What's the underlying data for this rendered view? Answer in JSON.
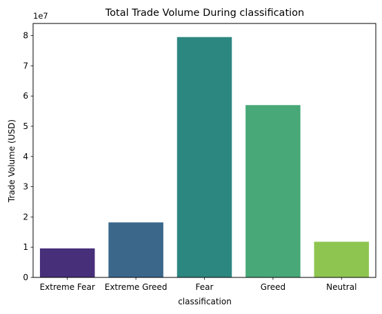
{
  "chart_data": {
    "type": "bar",
    "title": "Total Trade Volume During classification",
    "xlabel": "classification",
    "ylabel": "Trade Volume (USD)",
    "offset_text": "1e7",
    "categories": [
      "Extreme Fear",
      "Extreme Greed",
      "Fear",
      "Greed",
      "Neutral"
    ],
    "values": [
      9600000.0,
      18200000.0,
      79500000.0,
      57000000.0,
      11800000.0
    ],
    "colors": [
      "#482f7a",
      "#3b678b",
      "#2d8781",
      "#48a878",
      "#8ec550"
    ],
    "ylim": [
      0,
      84000000
    ],
    "yticks": [
      0,
      10000000,
      20000000,
      30000000,
      40000000,
      50000000,
      60000000,
      70000000,
      80000000
    ],
    "ytick_labels": [
      "0",
      "1",
      "2",
      "3",
      "4",
      "5",
      "6",
      "7",
      "8"
    ],
    "grid": false,
    "legend": "none"
  }
}
